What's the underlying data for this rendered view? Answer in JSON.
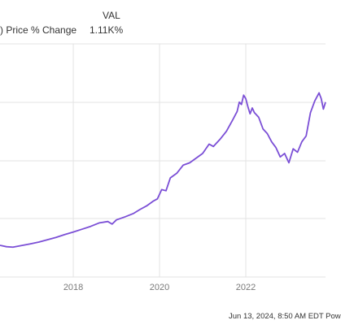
{
  "legend": {
    "column_header": "VAL",
    "series_label": ") Price % Change",
    "series_value": "1.11K%"
  },
  "footer": {
    "text": "Jun 13, 2024, 8:50 AM EDT Pow"
  },
  "colors": {
    "line": "#7b4fd6",
    "grid": "#e3e3e3",
    "tick_text": "#7a7a7a"
  },
  "chart_data": {
    "type": "line",
    "title": "",
    "xlabel": "",
    "ylabel": "",
    "x_ticks": [
      {
        "label": "2018",
        "x": 2018
      },
      {
        "label": "2020",
        "x": 2020
      },
      {
        "label": "2022",
        "x": 2022
      }
    ],
    "y_ticks": [],
    "xlim": [
      2016.3,
      2023.85
    ],
    "ylim": [
      0,
      100
    ],
    "grid": true,
    "series": [
      {
        "name": "",
        "values": [
          [
            2016.3,
            13.6
          ],
          [
            2016.45,
            13.0
          ],
          [
            2016.6,
            12.8
          ],
          [
            2016.8,
            13.5
          ],
          [
            2017.0,
            14.2
          ],
          [
            2017.2,
            15.0
          ],
          [
            2017.4,
            16.0
          ],
          [
            2017.6,
            17.0
          ],
          [
            2017.8,
            18.2
          ],
          [
            2018.0,
            19.3
          ],
          [
            2018.2,
            20.5
          ],
          [
            2018.4,
            21.7
          ],
          [
            2018.6,
            23.2
          ],
          [
            2018.8,
            23.8
          ],
          [
            2018.9,
            22.7
          ],
          [
            2019.0,
            24.5
          ],
          [
            2019.2,
            25.8
          ],
          [
            2019.4,
            27.3
          ],
          [
            2019.55,
            29.0
          ],
          [
            2019.7,
            30.5
          ],
          [
            2019.85,
            32.5
          ],
          [
            2019.95,
            33.5
          ],
          [
            2020.05,
            37.5
          ],
          [
            2020.15,
            37.0
          ],
          [
            2020.25,
            42.5
          ],
          [
            2020.4,
            44.5
          ],
          [
            2020.55,
            48.0
          ],
          [
            2020.7,
            49.0
          ],
          [
            2020.85,
            51.0
          ],
          [
            2021.0,
            53.0
          ],
          [
            2021.15,
            57.0
          ],
          [
            2021.25,
            56.0
          ],
          [
            2021.4,
            59.0
          ],
          [
            2021.55,
            62.5
          ],
          [
            2021.7,
            67.5
          ],
          [
            2021.8,
            71.0
          ],
          [
            2021.85,
            75.0
          ],
          [
            2021.9,
            74.0
          ],
          [
            2021.95,
            78.0
          ],
          [
            2022.0,
            76.5
          ],
          [
            2022.05,
            73.0
          ],
          [
            2022.1,
            70.0
          ],
          [
            2022.15,
            72.5
          ],
          [
            2022.2,
            70.5
          ],
          [
            2022.3,
            68.5
          ],
          [
            2022.4,
            63.5
          ],
          [
            2022.5,
            61.5
          ],
          [
            2022.6,
            58.0
          ],
          [
            2022.7,
            55.5
          ],
          [
            2022.8,
            51.5
          ],
          [
            2022.9,
            53.0
          ],
          [
            2023.0,
            49.0
          ],
          [
            2023.1,
            55.0
          ],
          [
            2023.2,
            53.5
          ],
          [
            2023.3,
            58.0
          ],
          [
            2023.4,
            60.5
          ],
          [
            2023.5,
            70.5
          ],
          [
            2023.6,
            75.5
          ],
          [
            2023.7,
            79.0
          ],
          [
            2023.75,
            76.5
          ],
          [
            2023.8,
            72.0
          ],
          [
            2023.85,
            75.0
          ]
        ]
      }
    ]
  }
}
